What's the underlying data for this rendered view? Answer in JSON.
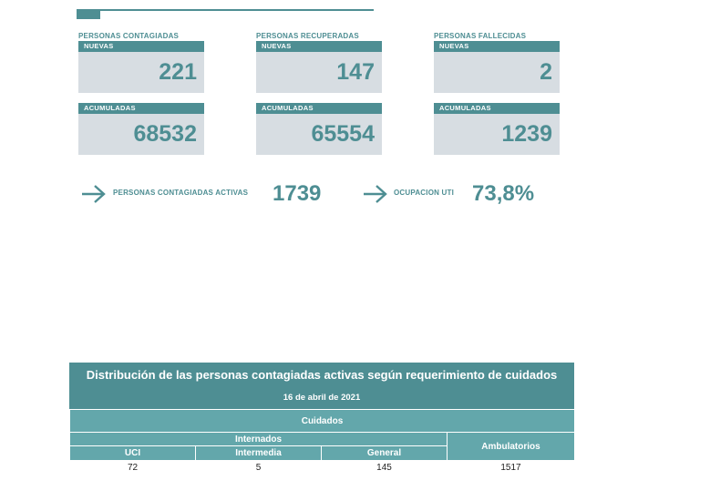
{
  "cards": [
    {
      "title": "PERSONAS CONTAGIADAS",
      "nuevas_label": "NUEVAS",
      "nuevas_value": "221",
      "acum_label": "ACUMULADAS",
      "acum_value": "68532"
    },
    {
      "title": "PERSONAS RECUPERADAS",
      "nuevas_label": "NUEVAS",
      "nuevas_value": "147",
      "acum_label": "ACUMULADAS",
      "acum_value": "65554"
    },
    {
      "title": "PERSONAS FALLECIDAS",
      "nuevas_label": "NUEVAS",
      "nuevas_value": "2",
      "acum_label": "ACUMULADAS",
      "acum_value": "1239"
    }
  ],
  "indicators": {
    "activas_label": "PERSONAS CONTAGIADAS ACTIVAS",
    "activas_value": "1739",
    "uti_label": "OCUPACION UTI",
    "uti_value": "73,8%"
  },
  "table": {
    "title": "Distribución de las personas contagiadas activas según requerimiento de cuidados",
    "date": "16 de abril de 2021",
    "cuidados": "Cuidados",
    "internados": "Internados",
    "ambulatorios": "Ambulatorios",
    "columns": [
      "UCI",
      "Intermedia",
      "General"
    ],
    "values": [
      "72",
      "5",
      "145",
      "1517"
    ]
  },
  "colors": {
    "accent": "#4e8e93",
    "header_light": "#63a7ab",
    "card_bg": "#d7dde2"
  },
  "icons": {
    "arrow": "arrow-right-icon"
  }
}
